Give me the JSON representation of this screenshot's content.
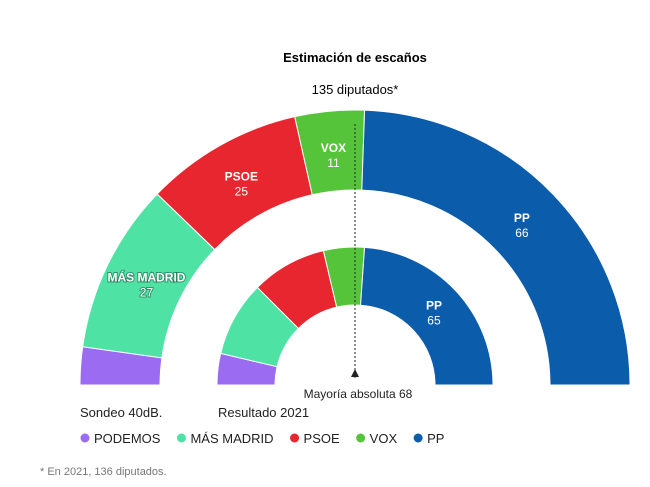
{
  "header": {
    "title": "Estimación de escaños",
    "subtitle": "135 diputados*"
  },
  "chart_data": {
    "type": "semicircle-parliament",
    "parties": [
      "PODEMOS",
      "MÁS MADRID",
      "PSOE",
      "VOX",
      "PP"
    ],
    "colors": {
      "PODEMOS": "#9b6bf2",
      "MÁS MADRID": "#4ee3a5",
      "PSOE": "#e8262f",
      "VOX": "#56c43a",
      "PP": "#0b5cab"
    },
    "series": [
      {
        "name": "Sondeo 40dB.",
        "total": 135,
        "values": [
          6,
          27,
          25,
          11,
          66
        ],
        "labels_shown": [
          "MÁS MADRID",
          "PSOE",
          "VOX",
          "PP"
        ]
      },
      {
        "name": "Resultado 2021",
        "total": 136,
        "values": [
          10,
          24,
          24,
          13,
          65
        ],
        "labels_shown": [
          "PP"
        ]
      }
    ],
    "majority": {
      "label": "Mayoría absoluta 68",
      "value": 68
    },
    "legend": [
      "PODEMOS",
      "MÁS MADRID",
      "PSOE",
      "VOX",
      "PP"
    ],
    "footnote": "* En 2021, 136 diputados."
  }
}
